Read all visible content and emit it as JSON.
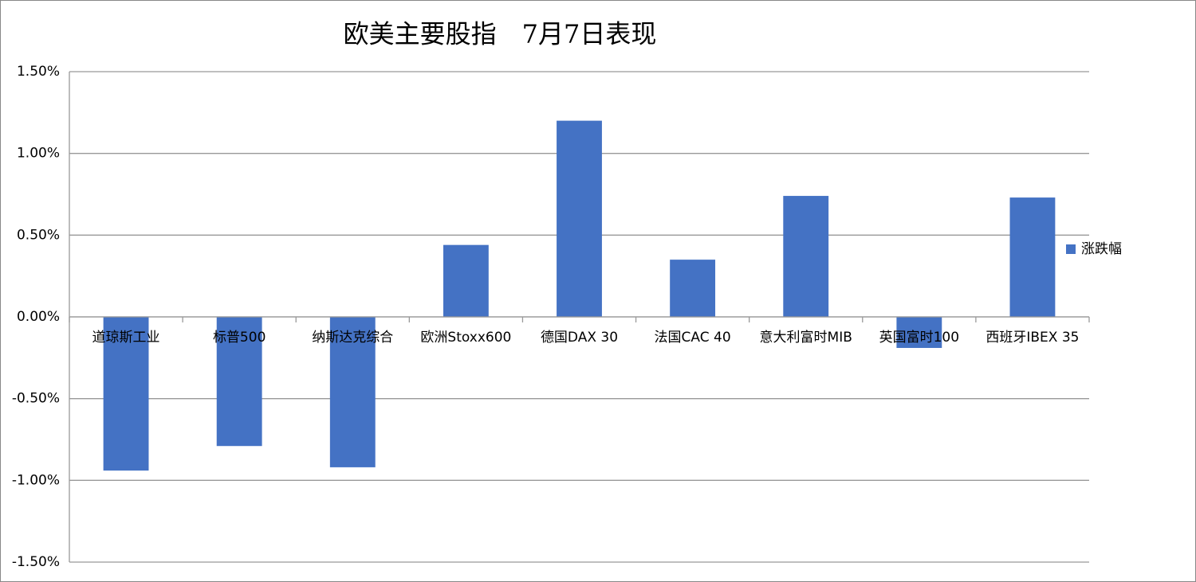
{
  "chart_data": {
    "type": "bar",
    "title": "欧美主要股指　7月7日表现",
    "categories": [
      "道琼斯工业",
      "标普500",
      "纳斯达克综合",
      "欧洲Stoxx600",
      "德国DAX 30",
      "法国CAC 40",
      "意大利富时MIB",
      "英国富时100",
      "西班牙IBEX 35"
    ],
    "series": [
      {
        "name": "涨跌幅",
        "color": "#4472c4",
        "values": [
          -0.94,
          -0.79,
          -0.92,
          0.44,
          1.2,
          0.35,
          0.74,
          -0.19,
          0.73
        ]
      }
    ],
    "ylim": [
      -1.5,
      1.5
    ],
    "yticks": [
      {
        "value": -1.5,
        "label": "-1.50%"
      },
      {
        "value": -1.0,
        "label": "-1.00%"
      },
      {
        "value": -0.5,
        "label": "-0.50%"
      },
      {
        "value": 0,
        "label": "0.00%"
      },
      {
        "value": 0.5,
        "label": "0.50%"
      },
      {
        "value": 1.0,
        "label": "1.00%"
      },
      {
        "value": 1.5,
        "label": "1.50%"
      }
    ],
    "grid": true,
    "legend": "right"
  }
}
